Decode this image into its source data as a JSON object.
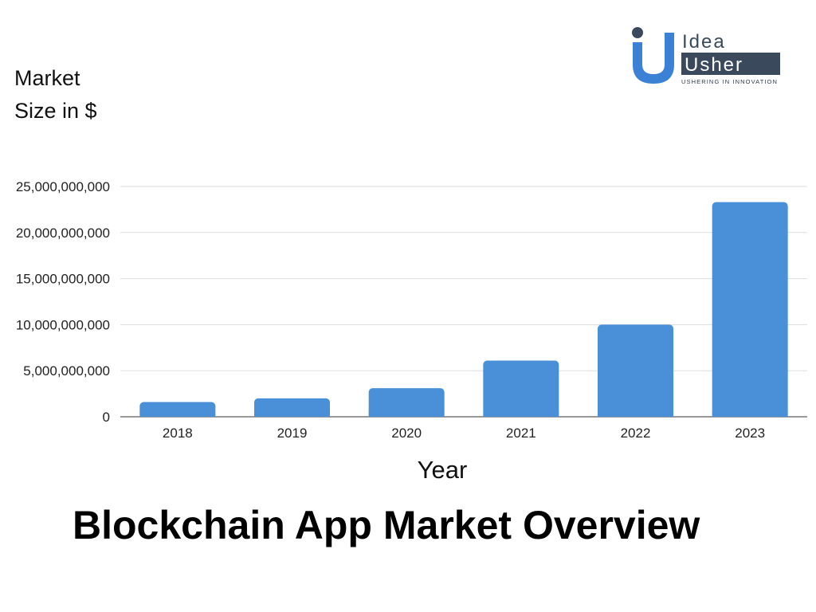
{
  "chart_data": {
    "type": "bar",
    "title": "Blockchain App Market Overview",
    "ylabel_lines": [
      "Market",
      "Size in $"
    ],
    "xlabel": "Year",
    "categories": [
      "2018",
      "2019",
      "2020",
      "2021",
      "2022",
      "2023"
    ],
    "values": [
      1600000000,
      2000000000,
      3100000000,
      6100000000,
      10000000000,
      23300000000
    ],
    "ylim": [
      0,
      25000000000
    ],
    "yticks": [
      "0",
      "5,000,000,000",
      "10,000,000,000",
      "15,000,000,000",
      "20,000,000,000",
      "25,000,000,000"
    ],
    "ytick_values": [
      0,
      5000000000,
      10000000000,
      15000000000,
      20000000000,
      25000000000
    ],
    "grid": true,
    "bar_color": "#4a90d9",
    "grid_color": "#dddddd"
  },
  "logo": {
    "line1": "Idea",
    "line2": "Usher",
    "tagline": "USHERING IN INNOVATION",
    "colors": {
      "blue": "#3b82d6",
      "dark": "#3a4a5c"
    }
  }
}
